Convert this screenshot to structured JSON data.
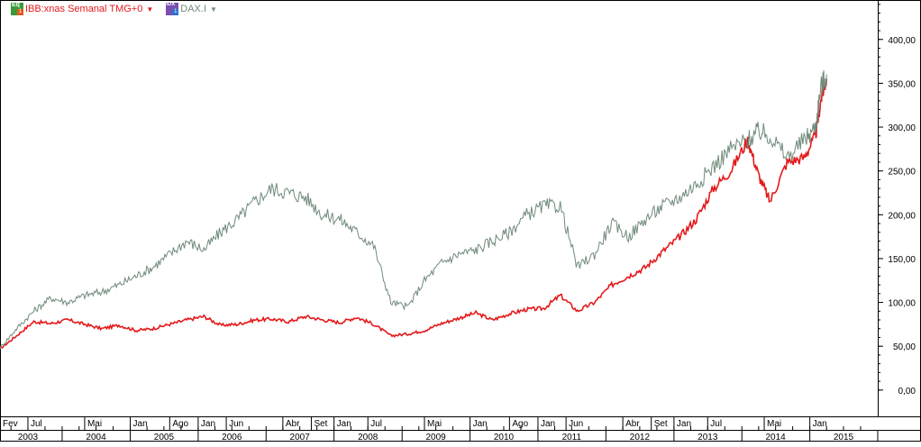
{
  "colors": {
    "series_ibb": "#e41a1c",
    "series_dax": "#6f8a7a",
    "badge_stock_bg": "#3a9a3a",
    "badge_stock_accent": "#e05a1a",
    "badge_index_bg": "#7a4fb0",
    "badge_index_accent": "#2f6fd0",
    "grid": "#000000",
    "axis_text": "#000000"
  },
  "legend": {
    "items": [
      {
        "label": "IBB:xnas Semanal TMG+0",
        "badge_text": "Eq",
        "badge_sub": "1",
        "icon": "equity-icon",
        "color_key": "series_ibb"
      },
      {
        "label": "DAX.I",
        "badge_text": "IDX",
        "badge_sub": "1",
        "icon": "index-icon",
        "color_key": "series_dax"
      }
    ]
  },
  "chart_data": {
    "type": "line",
    "title": "",
    "xlabel": "",
    "ylabel": "",
    "ylim": [
      -30,
      445
    ],
    "xlim": [
      "2003-02-01",
      "2016-01-01"
    ],
    "y_ticks": [
      0,
      50,
      100,
      150,
      200,
      250,
      300,
      350,
      400
    ],
    "y_tick_labels": [
      "0,00",
      "50,00",
      "100,00",
      "150,00",
      "200,00",
      "250,00",
      "300,00",
      "350,00",
      "400,00"
    ],
    "x_month_ticks": [
      {
        "date": "2003-02-01",
        "label": "Fev"
      },
      {
        "date": "2003-07-01",
        "label": "Jul"
      },
      {
        "date": "2004-05-01",
        "label": "Mai"
      },
      {
        "date": "2005-01-01",
        "label": "Jan"
      },
      {
        "date": "2005-08-01",
        "label": "Ago"
      },
      {
        "date": "2006-01-01",
        "label": "Jan"
      },
      {
        "date": "2006-06-01",
        "label": "Jun"
      },
      {
        "date": "2007-04-01",
        "label": "Abr"
      },
      {
        "date": "2007-09-01",
        "label": "Set"
      },
      {
        "date": "2008-01-01",
        "label": "Jan"
      },
      {
        "date": "2008-07-01",
        "label": "Jul"
      },
      {
        "date": "2009-05-01",
        "label": "Mai"
      },
      {
        "date": "2010-01-01",
        "label": "Jan"
      },
      {
        "date": "2010-08-01",
        "label": "Ago"
      },
      {
        "date": "2011-01-01",
        "label": "Jan"
      },
      {
        "date": "2011-06-01",
        "label": "Jun"
      },
      {
        "date": "2012-04-01",
        "label": "Abr"
      },
      {
        "date": "2012-09-01",
        "label": "Set"
      },
      {
        "date": "2013-01-01",
        "label": "Jan"
      },
      {
        "date": "2013-07-01",
        "label": "Jul"
      },
      {
        "date": "2014-05-01",
        "label": "Mai"
      },
      {
        "date": "2015-01-01",
        "label": "Jan"
      }
    ],
    "x_year_labels": [
      {
        "date": "2003-07-01",
        "label": "2003"
      },
      {
        "date": "2004-07-01",
        "label": "2004"
      },
      {
        "date": "2005-07-01",
        "label": "2005"
      },
      {
        "date": "2006-07-01",
        "label": "2006"
      },
      {
        "date": "2007-07-01",
        "label": "2007"
      },
      {
        "date": "2008-07-01",
        "label": "2008"
      },
      {
        "date": "2009-07-01",
        "label": "2009"
      },
      {
        "date": "2010-07-01",
        "label": "2010"
      },
      {
        "date": "2011-07-01",
        "label": "2011"
      },
      {
        "date": "2012-07-01",
        "label": "2012"
      },
      {
        "date": "2013-07-01",
        "label": "2013"
      },
      {
        "date": "2014-07-01",
        "label": "2014"
      },
      {
        "date": "2015-07-01",
        "label": "2015"
      }
    ],
    "series": [
      {
        "name": "IBB:xnas Semanal TMG+0",
        "color_key": "series_ibb",
        "x": [
          "2003-02-01",
          "2003-05-01",
          "2003-08-01",
          "2003-11-01",
          "2004-02-01",
          "2004-05-01",
          "2004-08-01",
          "2004-11-01",
          "2005-02-01",
          "2005-05-01",
          "2005-08-01",
          "2005-11-01",
          "2006-02-01",
          "2006-05-01",
          "2006-08-01",
          "2006-11-01",
          "2007-02-01",
          "2007-05-01",
          "2007-08-01",
          "2007-11-01",
          "2008-02-01",
          "2008-05-01",
          "2008-08-01",
          "2008-11-01",
          "2009-02-01",
          "2009-05-01",
          "2009-08-01",
          "2009-11-01",
          "2010-02-01",
          "2010-05-01",
          "2010-08-01",
          "2010-11-01",
          "2011-02-01",
          "2011-05-01",
          "2011-08-01",
          "2011-11-01",
          "2012-02-01",
          "2012-05-01",
          "2012-08-01",
          "2012-11-01",
          "2013-02-01",
          "2013-05-01",
          "2013-08-01",
          "2013-11-01",
          "2014-02-01",
          "2014-04-01",
          "2014-06-01",
          "2014-09-01",
          "2014-12-01",
          "2015-02-01",
          "2015-03-01",
          "2015-04-01"
        ],
        "values": [
          47,
          62,
          78,
          76,
          80,
          75,
          70,
          74,
          68,
          70,
          75,
          80,
          84,
          74,
          75,
          80,
          81,
          78,
          84,
          80,
          77,
          83,
          75,
          62,
          64,
          68,
          76,
          82,
          88,
          80,
          87,
          92,
          93,
          108,
          90,
          100,
          120,
          130,
          140,
          158,
          175,
          195,
          230,
          250,
          285,
          245,
          215,
          260,
          265,
          290,
          330,
          355
        ]
      },
      {
        "name": "DAX.I",
        "color_key": "series_dax",
        "x": [
          "2003-02-01",
          "2003-05-01",
          "2003-08-01",
          "2003-11-01",
          "2004-02-01",
          "2004-05-01",
          "2004-08-01",
          "2004-11-01",
          "2005-02-01",
          "2005-05-01",
          "2005-08-01",
          "2005-11-01",
          "2006-02-01",
          "2006-05-01",
          "2006-08-01",
          "2006-11-01",
          "2007-02-01",
          "2007-05-01",
          "2007-08-01",
          "2007-11-01",
          "2008-02-01",
          "2008-05-01",
          "2008-08-01",
          "2008-11-01",
          "2009-02-01",
          "2009-05-01",
          "2009-08-01",
          "2009-11-01",
          "2010-02-01",
          "2010-05-01",
          "2010-08-01",
          "2010-11-01",
          "2011-02-01",
          "2011-05-01",
          "2011-08-01",
          "2011-11-01",
          "2012-02-01",
          "2012-05-01",
          "2012-08-01",
          "2012-11-01",
          "2013-02-01",
          "2013-05-01",
          "2013-08-01",
          "2013-11-01",
          "2014-02-01",
          "2014-04-01",
          "2014-06-01",
          "2014-09-01",
          "2014-12-01",
          "2015-02-01",
          "2015-03-01",
          "2015-04-01"
        ],
        "values": [
          48,
          70,
          90,
          105,
          100,
          108,
          112,
          120,
          130,
          140,
          155,
          170,
          160,
          180,
          195,
          215,
          230,
          225,
          220,
          200,
          195,
          180,
          165,
          100,
          95,
          125,
          145,
          155,
          160,
          170,
          180,
          200,
          210,
          210,
          140,
          155,
          190,
          175,
          195,
          210,
          220,
          235,
          255,
          275,
          285,
          295,
          290,
          265,
          285,
          300,
          345,
          360
        ]
      }
    ]
  }
}
